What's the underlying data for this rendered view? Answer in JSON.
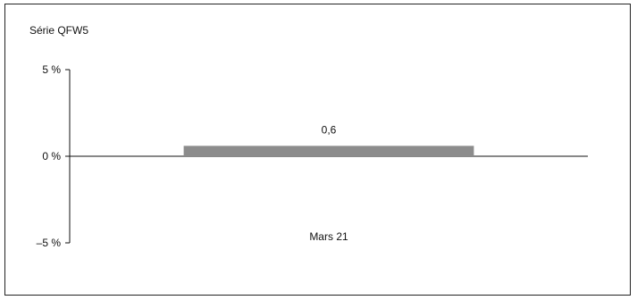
{
  "chart_data": {
    "type": "bar",
    "title": "Série QFW5",
    "categories": [
      "Mars 21"
    ],
    "series": [
      {
        "values": [
          0.6
        ],
        "labels": [
          "0,6"
        ],
        "color": "#8c8c8c"
      }
    ],
    "ylim": [
      -5,
      5
    ],
    "yticks": [
      5,
      0,
      -5
    ],
    "ytick_labels": [
      "5 %",
      "0 %",
      "–5 %"
    ],
    "grid": false,
    "legend": "none",
    "xlabel": "",
    "ylabel": ""
  }
}
